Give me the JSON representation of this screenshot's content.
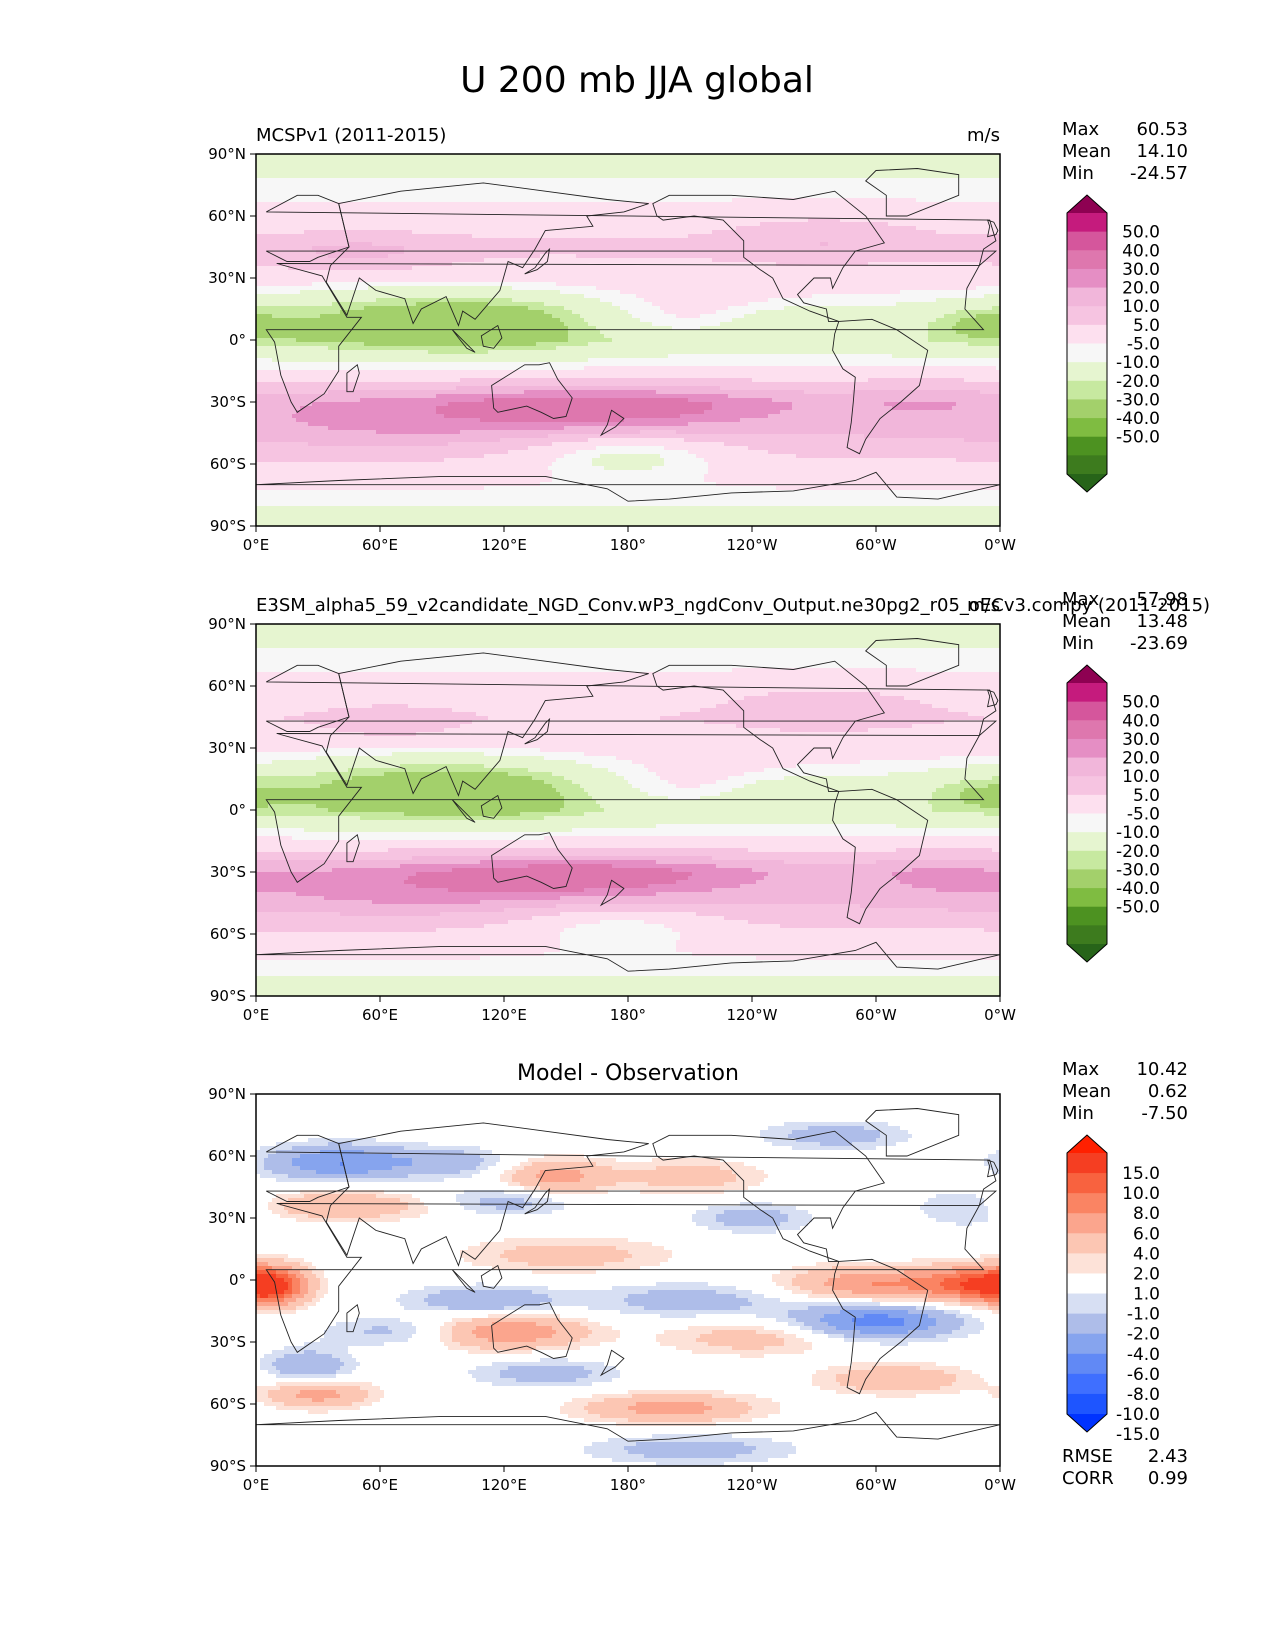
{
  "figure": {
    "title": "U 200 mb JJA global"
  },
  "colors": {
    "pink_green": [
      "#276419",
      "#3d7b1e",
      "#4d9221",
      "#7fbc41",
      "#a3d06b",
      "#c7e9a0",
      "#e6f5d0",
      "#f7f7f7",
      "#fde0ef",
      "#f6c4e1",
      "#f1b6da",
      "#e58ec4",
      "#de77ae",
      "#d5569c",
      "#c51b7d",
      "#8e0152"
    ],
    "diff": [
      "#0033ff",
      "#1e55ff",
      "#3f6fff",
      "#6189f5",
      "#86a4ee",
      "#aebde9",
      "#d7dff3",
      "#ffffff",
      "#fde2d8",
      "#fcc6b3",
      "#fba58d",
      "#fa8463",
      "#f8623f",
      "#f53e22",
      "#ff2000"
    ],
    "land_outline": "#222222"
  },
  "chart_data": [
    {
      "type": "heatmap",
      "name": "test",
      "title_left": "MCSPv1 (2011-2015)",
      "title_right": "m/s",
      "xlabel": "",
      "ylabel": "",
      "xticks": [
        "0°E",
        "60°E",
        "120°E",
        "180°",
        "120°W",
        "60°W",
        "0°W"
      ],
      "yticks": [
        "90°N",
        "60°N",
        "30°N",
        "0°",
        "30°S",
        "60°S",
        "90°S"
      ],
      "xlim": [
        0,
        360
      ],
      "ylim": [
        -90,
        90
      ],
      "stats": [
        [
          "Max",
          "60.53"
        ],
        [
          "Mean",
          "14.10"
        ],
        [
          "Min",
          "-24.57"
        ]
      ],
      "colorbar_levels": [
        "50.0",
        "40.0",
        "30.0",
        "20.0",
        "10.0",
        "5.0",
        "-5.0",
        "-10.0",
        "-20.0",
        "-30.0",
        "-40.0",
        "-50.0"
      ],
      "bounds": [
        -70,
        -50,
        -40,
        -30,
        -20,
        -10,
        -5,
        5,
        10,
        20,
        30,
        40,
        50,
        70
      ],
      "palette": "pink_green",
      "field": {
        "base": [
          [
            -90,
            0
          ],
          [
            -75,
            8
          ],
          [
            -60,
            18
          ],
          [
            -45,
            30
          ],
          [
            -30,
            34
          ],
          [
            -15,
            12
          ],
          [
            0,
            -2
          ],
          [
            15,
            4
          ],
          [
            30,
            16
          ],
          [
            45,
            22
          ],
          [
            60,
            14
          ],
          [
            75,
            6
          ],
          [
            90,
            0
          ]
        ],
        "features": [
          {
            "lon": 165,
            "lat": -33,
            "sx": 55,
            "sy": 7,
            "amp": 28
          },
          {
            "lon": 60,
            "lat": -40,
            "sx": 55,
            "sy": 9,
            "amp": 10
          },
          {
            "lon": 320,
            "lat": -30,
            "sx": 22,
            "sy": 8,
            "amp": 6
          },
          {
            "lon": 80,
            "lat": 10,
            "sx": 55,
            "sy": 12,
            "amp": -18
          },
          {
            "lon": 125,
            "lat": 8,
            "sx": 30,
            "sy": 10,
            "amp": -6
          },
          {
            "lon": 250,
            "lat": 8,
            "sx": 20,
            "sy": 6,
            "amp": -9
          },
          {
            "lon": 350,
            "lat": 8,
            "sx": 18,
            "sy": 6,
            "amp": -10
          },
          {
            "lon": 50,
            "lat": 42,
            "sx": 30,
            "sy": 6,
            "amp": 12
          },
          {
            "lon": 275,
            "lat": 50,
            "sx": 30,
            "sy": 7,
            "amp": 10
          },
          {
            "lon": 180,
            "lat": -55,
            "sx": 35,
            "sy": 8,
            "amp": -18
          },
          {
            "lon": 215,
            "lat": 12,
            "sx": 35,
            "sy": 8,
            "amp": 10
          }
        ]
      }
    },
    {
      "type": "heatmap",
      "name": "reference",
      "title_left": "E3SM_alpha5_59_v2candidate_NGD_Conv.wP3_ngdConv_Output.ne30pg2_r05_oECv3.compy (2011-2015)",
      "title_right": "m/s",
      "xlabel": "",
      "ylabel": "",
      "xticks": [
        "0°E",
        "60°E",
        "120°E",
        "180°",
        "120°W",
        "60°W",
        "0°W"
      ],
      "yticks": [
        "90°N",
        "60°N",
        "30°N",
        "0°",
        "30°S",
        "60°S",
        "90°S"
      ],
      "xlim": [
        0,
        360
      ],
      "ylim": [
        -90,
        90
      ],
      "stats": [
        [
          "Max",
          "57.98"
        ],
        [
          "Mean",
          "13.48"
        ],
        [
          "Min",
          "-23.69"
        ]
      ],
      "colorbar_levels": [
        "50.0",
        "40.0",
        "30.0",
        "20.0",
        "10.0",
        "5.0",
        "-5.0",
        "-10.0",
        "-20.0",
        "-30.0",
        "-40.0",
        "-50.0"
      ],
      "bounds": [
        -70,
        -50,
        -40,
        -30,
        -20,
        -10,
        -5,
        5,
        10,
        20,
        30,
        40,
        50,
        70
      ],
      "palette": "pink_green",
      "field": {
        "base": [
          [
            -90,
            0
          ],
          [
            -75,
            8
          ],
          [
            -60,
            18
          ],
          [
            -45,
            30
          ],
          [
            -30,
            33
          ],
          [
            -15,
            12
          ],
          [
            0,
            -2
          ],
          [
            15,
            4
          ],
          [
            30,
            15
          ],
          [
            45,
            20
          ],
          [
            60,
            14
          ],
          [
            75,
            6
          ],
          [
            90,
            0
          ]
        ],
        "features": [
          {
            "lon": 160,
            "lat": -32,
            "sx": 55,
            "sy": 7,
            "amp": 26
          },
          {
            "lon": 70,
            "lat": -38,
            "sx": 60,
            "sy": 9,
            "amp": 12
          },
          {
            "lon": 330,
            "lat": -32,
            "sx": 25,
            "sy": 8,
            "amp": 8
          },
          {
            "lon": 80,
            "lat": 12,
            "sx": 55,
            "sy": 12,
            "amp": -18
          },
          {
            "lon": 125,
            "lat": 8,
            "sx": 30,
            "sy": 10,
            "amp": -6
          },
          {
            "lon": 250,
            "lat": 8,
            "sx": 20,
            "sy": 6,
            "amp": -9
          },
          {
            "lon": 350,
            "lat": 8,
            "sx": 18,
            "sy": 6,
            "amp": -9
          },
          {
            "lon": 65,
            "lat": 42,
            "sx": 20,
            "sy": 5,
            "amp": 10
          },
          {
            "lon": 275,
            "lat": 50,
            "sx": 30,
            "sy": 7,
            "amp": 10
          },
          {
            "lon": 175,
            "lat": -55,
            "sx": 35,
            "sy": 8,
            "amp": -14
          },
          {
            "lon": 215,
            "lat": 12,
            "sx": 35,
            "sy": 8,
            "amp": 10
          }
        ]
      }
    },
    {
      "type": "heatmap",
      "name": "difference",
      "title_center": "Model - Observation",
      "xlabel": "",
      "ylabel": "",
      "xticks": [
        "0°E",
        "60°E",
        "120°E",
        "180°",
        "120°W",
        "60°W",
        "0°W"
      ],
      "yticks": [
        "90°N",
        "60°N",
        "30°N",
        "0°",
        "30°S",
        "60°S",
        "90°S"
      ],
      "xlim": [
        0,
        360
      ],
      "ylim": [
        -90,
        90
      ],
      "stats": [
        [
          "Max",
          "10.42"
        ],
        [
          "Mean",
          "0.62"
        ],
        [
          "Min",
          "-7.50"
        ]
      ],
      "colorbar_levels": [
        "15.0",
        "10.0",
        "8.0",
        "6.0",
        "4.0",
        "2.0",
        "1.0",
        "-1.0",
        "-2.0",
        "-4.0",
        "-6.0",
        "-8.0",
        "-10.0",
        "-15.0"
      ],
      "bounds": [
        -20,
        -15,
        -10,
        -8,
        -6,
        -4,
        -2,
        -1,
        1,
        2,
        4,
        6,
        8,
        10,
        15,
        20
      ],
      "palette": "diff",
      "footer_stats": [
        [
          "RMSE",
          "2.43"
        ],
        [
          "CORR",
          "0.99"
        ]
      ],
      "field": {
        "base": [
          [
            -90,
            0
          ],
          [
            90,
            0
          ]
        ],
        "features": [
          {
            "lon": 40,
            "lat": 57,
            "sx": 25,
            "sy": 6,
            "amp": -6
          },
          {
            "lon": 95,
            "lat": 57,
            "sx": 20,
            "sy": 5,
            "amp": -3
          },
          {
            "lon": 40,
            "lat": 36,
            "sx": 35,
            "sy": 5,
            "amp": 4
          },
          {
            "lon": 145,
            "lat": 50,
            "sx": 18,
            "sy": 6,
            "amp": 5
          },
          {
            "lon": 120,
            "lat": 38,
            "sx": 25,
            "sy": 5,
            "amp": -3
          },
          {
            "lon": 210,
            "lat": 50,
            "sx": 25,
            "sy": 6,
            "amp": 3
          },
          {
            "lon": 280,
            "lat": 70,
            "sx": 25,
            "sy": 5,
            "amp": -3
          },
          {
            "lon": 240,
            "lat": 30,
            "sx": 20,
            "sy": 5,
            "amp": -3
          },
          {
            "lon": 345,
            "lat": 35,
            "sx": 18,
            "sy": 6,
            "amp": -3
          },
          {
            "lon": 8,
            "lat": -3,
            "sx": 12,
            "sy": 7,
            "amp": 8
          },
          {
            "lon": 300,
            "lat": -2,
            "sx": 30,
            "sy": 6,
            "amp": 6
          },
          {
            "lon": 350,
            "lat": -2,
            "sx": 18,
            "sy": 6,
            "amp": 8
          },
          {
            "lon": 150,
            "lat": 12,
            "sx": 35,
            "sy": 6,
            "amp": 3
          },
          {
            "lon": 110,
            "lat": -10,
            "sx": 25,
            "sy": 5,
            "amp": -4
          },
          {
            "lon": 210,
            "lat": -10,
            "sx": 35,
            "sy": 6,
            "amp": -3
          },
          {
            "lon": 300,
            "lat": -20,
            "sx": 28,
            "sy": 6,
            "amp": -7
          },
          {
            "lon": 70,
            "lat": -25,
            "sx": 25,
            "sy": 5,
            "amp": -3
          },
          {
            "lon": 120,
            "lat": -25,
            "sx": 28,
            "sy": 6,
            "amp": 6
          },
          {
            "lon": 240,
            "lat": -28,
            "sx": 30,
            "sy": 6,
            "amp": 3
          },
          {
            "lon": 25,
            "lat": -42,
            "sx": 15,
            "sy": 6,
            "amp": -4
          },
          {
            "lon": 30,
            "lat": -55,
            "sx": 18,
            "sy": 5,
            "amp": 5
          },
          {
            "lon": 140,
            "lat": -45,
            "sx": 25,
            "sy": 5,
            "amp": -3
          },
          {
            "lon": 310,
            "lat": -48,
            "sx": 25,
            "sy": 5,
            "amp": 4
          },
          {
            "lon": 200,
            "lat": -62,
            "sx": 30,
            "sy": 5,
            "amp": 5
          },
          {
            "lon": 210,
            "lat": -82,
            "sx": 35,
            "sy": 5,
            "amp": -3
          }
        ]
      }
    }
  ]
}
